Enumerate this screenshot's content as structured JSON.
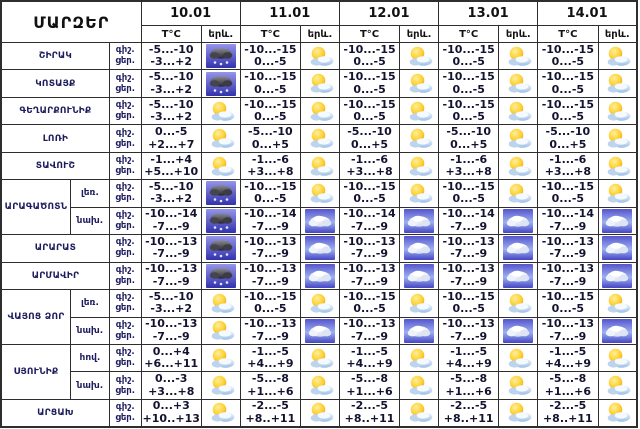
{
  "chart_data": {
    "type": "table",
    "title": "ՄԱՐԶԵՐ",
    "columns": {
      "dates": [
        "10.01",
        "11.01",
        "12.01",
        "13.01",
        "14.01"
      ],
      "temp_label": "T°C",
      "weather_label": "երև."
    },
    "labels": {
      "night": "գիշ.",
      "day": "ցեր."
    },
    "icons": {
      "pc": "sun-behind-cloud",
      "snow": "snow-cloud",
      "cloud": "cloudy"
    },
    "colors": {
      "text_navy": "#1d1d5e",
      "text_dark": "#131330",
      "border": "#2e2e2e",
      "snow_bg_top": "#9595ea",
      "snow_bg_bottom": "#3232ac",
      "cloud_bg_top": "#5555cc",
      "cloud_bg_mid": "#9db0f2",
      "cloud_bg_bottom": "#4646c2",
      "sun": "#ffd43a"
    },
    "regions": [
      {
        "name": "ՇԻՐԱԿ",
        "subrows": [
          {
            "sub": null,
            "days": [
              {
                "t_night": "-5...-10",
                "t_day": "-3...+2",
                "icon": "snow"
              },
              {
                "t_night": "-10...-15",
                "t_day": "0...-5",
                "icon": "pc"
              },
              {
                "t_night": "-10...-15",
                "t_day": "0...-5",
                "icon": "pc"
              },
              {
                "t_night": "-10...-15",
                "t_day": "0...-5",
                "icon": "pc"
              },
              {
                "t_night": "-10...-15",
                "t_day": "0...-5",
                "icon": "pc"
              }
            ]
          }
        ]
      },
      {
        "name": "ԿՈՏԱՅՔ",
        "subrows": [
          {
            "sub": null,
            "days": [
              {
                "t_night": "-5...-10",
                "t_day": "-3...+2",
                "icon": "snow"
              },
              {
                "t_night": "-10...-15",
                "t_day": "0...-5",
                "icon": "pc"
              },
              {
                "t_night": "-10...-15",
                "t_day": "0...-5",
                "icon": "pc"
              },
              {
                "t_night": "-10...-15",
                "t_day": "0...-5",
                "icon": "pc"
              },
              {
                "t_night": "-10...-15",
                "t_day": "0...-5",
                "icon": "pc"
              }
            ]
          }
        ]
      },
      {
        "name": "ԳԵՂԱՐՔՈՒՆԻՔ",
        "subrows": [
          {
            "sub": null,
            "days": [
              {
                "t_night": "-5...-10",
                "t_day": "-3...+2",
                "icon": "pc"
              },
              {
                "t_night": "-10...-15",
                "t_day": "0...-5",
                "icon": "pc"
              },
              {
                "t_night": "-10...-15",
                "t_day": "0...-5",
                "icon": "pc"
              },
              {
                "t_night": "-10...-15",
                "t_day": "0...-5",
                "icon": "pc"
              },
              {
                "t_night": "-10...-15",
                "t_day": "0...-5",
                "icon": "pc"
              }
            ]
          }
        ]
      },
      {
        "name": "ԼՈՌԻ",
        "subrows": [
          {
            "sub": null,
            "days": [
              {
                "t_night": "0...-5",
                "t_day": "+2...+7",
                "icon": "pc"
              },
              {
                "t_night": "-5...-10",
                "t_day": "0...+5",
                "icon": "pc"
              },
              {
                "t_night": "-5...-10",
                "t_day": "0...+5",
                "icon": "pc"
              },
              {
                "t_night": "-5...-10",
                "t_day": "0...+5",
                "icon": "pc"
              },
              {
                "t_night": "-5...-10",
                "t_day": "0...+5",
                "icon": "pc"
              }
            ]
          }
        ]
      },
      {
        "name": "ՏԱՎՈՒՇ",
        "subrows": [
          {
            "sub": null,
            "days": [
              {
                "t_night": "-1...+4",
                "t_day": "+5...+10",
                "icon": "pc"
              },
              {
                "t_night": "-1...-6",
                "t_day": "+3...+8",
                "icon": "pc"
              },
              {
                "t_night": "-1...-6",
                "t_day": "+3...+8",
                "icon": "pc"
              },
              {
                "t_night": "-1...-6",
                "t_day": "+3...+8",
                "icon": "pc"
              },
              {
                "t_night": "-1...-6",
                "t_day": "+3...+8",
                "icon": "pc"
              }
            ]
          }
        ]
      },
      {
        "name": "ԱՐԱԳԱԾՈՏՆ",
        "subrows": [
          {
            "sub": "լեռ.",
            "days": [
              {
                "t_night": "-5...-10",
                "t_day": "-3...+2",
                "icon": "snow"
              },
              {
                "t_night": "-10...-15",
                "t_day": "0...-5",
                "icon": "pc"
              },
              {
                "t_night": "-10...-15",
                "t_day": "0...-5",
                "icon": "pc"
              },
              {
                "t_night": "-10...-15",
                "t_day": "0...-5",
                "icon": "pc"
              },
              {
                "t_night": "-10...-15",
                "t_day": "0...-5",
                "icon": "pc"
              }
            ]
          },
          {
            "sub": "նախ.",
            "days": [
              {
                "t_night": "-10...-14",
                "t_day": "-7...-9",
                "icon": "snow"
              },
              {
                "t_night": "-10...-14",
                "t_day": "-7...-9",
                "icon": "cloud"
              },
              {
                "t_night": "-10...-14",
                "t_day": "-7...-9",
                "icon": "cloud"
              },
              {
                "t_night": "-10...-14",
                "t_day": "-7...-9",
                "icon": "cloud"
              },
              {
                "t_night": "-10...-14",
                "t_day": "-7...-9",
                "icon": "cloud"
              }
            ]
          }
        ]
      },
      {
        "name": "ԱՐԱՐԱՏ",
        "subrows": [
          {
            "sub": null,
            "days": [
              {
                "t_night": "-10...-13",
                "t_day": "-7...-9",
                "icon": "snow"
              },
              {
                "t_night": "-10...-13",
                "t_day": "-7...-9",
                "icon": "cloud"
              },
              {
                "t_night": "-10...-13",
                "t_day": "-7...-9",
                "icon": "cloud"
              },
              {
                "t_night": "-10...-13",
                "t_day": "-7...-9",
                "icon": "cloud"
              },
              {
                "t_night": "-10...-13",
                "t_day": "-7...-9",
                "icon": "cloud"
              }
            ]
          }
        ]
      },
      {
        "name": "ԱՐՄԱՎԻՐ",
        "subrows": [
          {
            "sub": null,
            "days": [
              {
                "t_night": "-10...-13",
                "t_day": "-7...-9",
                "icon": "snow"
              },
              {
                "t_night": "-10...-13",
                "t_day": "-7...-9",
                "icon": "cloud"
              },
              {
                "t_night": "-10...-13",
                "t_day": "-7...-9",
                "icon": "cloud"
              },
              {
                "t_night": "-10...-13",
                "t_day": "-7...-9",
                "icon": "cloud"
              },
              {
                "t_night": "-10...-13",
                "t_day": "-7...-9",
                "icon": "cloud"
              }
            ]
          }
        ]
      },
      {
        "name": "ՎԱՅՈՑ ՁՈՐ",
        "subrows": [
          {
            "sub": "լեռ.",
            "days": [
              {
                "t_night": "-5...-10",
                "t_day": "-3...+2",
                "icon": "pc"
              },
              {
                "t_night": "-10...-15",
                "t_day": "0...-5",
                "icon": "pc"
              },
              {
                "t_night": "-10...-15",
                "t_day": "0...-5",
                "icon": "pc"
              },
              {
                "t_night": "-10...-15",
                "t_day": "0...-5",
                "icon": "pc"
              },
              {
                "t_night": "-10...-15",
                "t_day": "0...-5",
                "icon": "pc"
              }
            ]
          },
          {
            "sub": "նախ.",
            "days": [
              {
                "t_night": "-10...-13",
                "t_day": "-7...-9",
                "icon": "pc"
              },
              {
                "t_night": "-10...-13",
                "t_day": "-7...-9",
                "icon": "cloud"
              },
              {
                "t_night": "-10...-13",
                "t_day": "-7...-9",
                "icon": "cloud"
              },
              {
                "t_night": "-10...-13",
                "t_day": "-7...-9",
                "icon": "cloud"
              },
              {
                "t_night": "-10...-13",
                "t_day": "-7...-9",
                "icon": "cloud"
              }
            ]
          }
        ]
      },
      {
        "name": "ՍՅՈՒՆԻՔ",
        "subrows": [
          {
            "sub": "հով.",
            "days": [
              {
                "t_night": "0...+4",
                "t_day": "+6...+11",
                "icon": "pc"
              },
              {
                "t_night": "-1...-5",
                "t_day": "+4...+9",
                "icon": "pc"
              },
              {
                "t_night": "-1...-5",
                "t_day": "+4...+9",
                "icon": "pc"
              },
              {
                "t_night": "-1...-5",
                "t_day": "+4...+9",
                "icon": "pc"
              },
              {
                "t_night": "-1...-5",
                "t_day": "+4...+9",
                "icon": "pc"
              }
            ]
          },
          {
            "sub": "նախ.",
            "days": [
              {
                "t_night": "0...-3",
                "t_day": "+3...+8",
                "icon": "pc"
              },
              {
                "t_night": "-5...-8",
                "t_day": "+1...+6",
                "icon": "pc"
              },
              {
                "t_night": "-5...-8",
                "t_day": "+1...+6",
                "icon": "pc"
              },
              {
                "t_night": "-5...-8",
                "t_day": "+1...+6",
                "icon": "pc"
              },
              {
                "t_night": "-5...-8",
                "t_day": "+1...+6",
                "icon": "pc"
              }
            ]
          }
        ]
      },
      {
        "name": "ԱՐՑԱԽ",
        "subrows": [
          {
            "sub": null,
            "days": [
              {
                "t_night": "0...+3",
                "t_day": "+10..+13",
                "icon": "pc"
              },
              {
                "t_night": "-2...-5",
                "t_day": "+8..+11",
                "icon": "pc"
              },
              {
                "t_night": "-2...-5",
                "t_day": "+8..+11",
                "icon": "pc"
              },
              {
                "t_night": "-2...-5",
                "t_day": "+8..+11",
                "icon": "pc"
              },
              {
                "t_night": "-2...-5",
                "t_day": "+8..+11",
                "icon": "pc"
              }
            ]
          }
        ]
      }
    ]
  }
}
